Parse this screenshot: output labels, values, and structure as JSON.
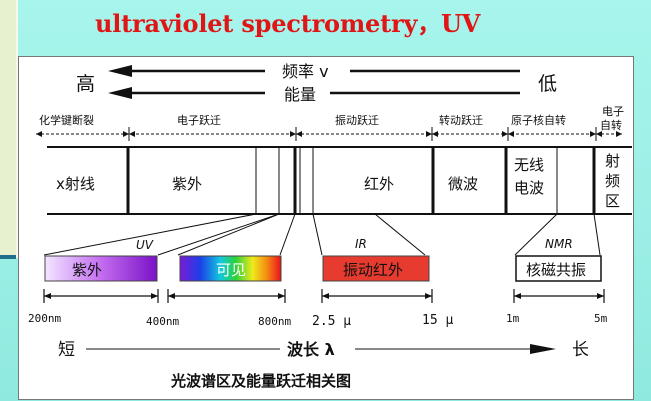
{
  "title": "ultraviolet spectrometry，UV",
  "top": {
    "high": "高",
    "low": "低",
    "frequency": "频率 v",
    "energy": "能量"
  },
  "transitions": {
    "chem_bond": "化学键断裂",
    "electronic": "电子跃迁",
    "vibration": "振动跃迁",
    "rotation": "转动跃迁",
    "nuclear_spin": "原子核自转",
    "electron_spin_1": "电子",
    "electron_spin_2": "自转"
  },
  "regions": {
    "xray": "x射线",
    "uv": "紫外",
    "ir": "红外",
    "microwave": "微波",
    "radio_1": "无线",
    "radio_2": "电波",
    "rf_1": "射",
    "rf_2": "频",
    "rf_3": "区"
  },
  "callouts": {
    "uv_label": "UV",
    "ir_label": "IR",
    "nmr_label": "NMR",
    "uv_box": "紫外",
    "vis_box": "可见",
    "ir_box": "振动红外",
    "nmr_box": "核磁共振"
  },
  "scale": {
    "w200": "200nm",
    "w400": "400nm",
    "w800": "800nm",
    "w2_5": "2.5 μ",
    "w15": "15 μ",
    "w1m": "1m",
    "w5m": "5m"
  },
  "wavelength": {
    "short": "短",
    "long": "长",
    "label": "波长 λ"
  },
  "caption": "光波谱区及能量跃迁相关图",
  "colors": {
    "title": "#e01515",
    "background": "#9cefe6",
    "ir_box": "#e63b2e"
  }
}
